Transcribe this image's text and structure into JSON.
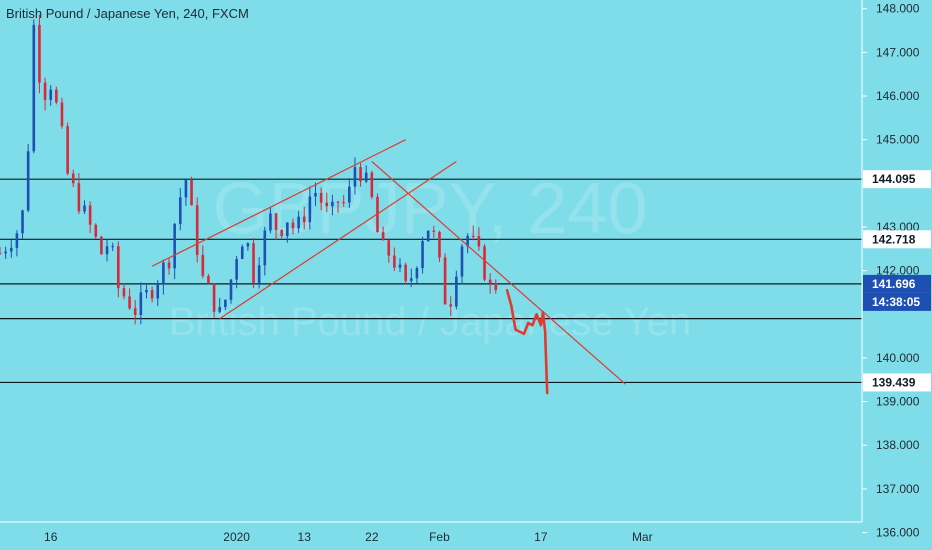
{
  "chart_data": {
    "type": "candlestick",
    "title": "British Pound / Japanese Yen, 240, FXCM",
    "watermark": {
      "symbol": "GBPJPY, 240",
      "description": "British Pound / Japanese Yen"
    },
    "colors": {
      "background": "#7fdde9",
      "up": "#1e50b4",
      "down": "#d9283a",
      "drawing": "#e03a2e",
      "level_line": "#0d1b22",
      "current_price_bg": "#1e50b4"
    },
    "y_axis": {
      "range": [
        135.6,
        148.2
      ],
      "ticks": [
        "148.000",
        "147.000",
        "146.000",
        "145.000",
        "143.000",
        "142.000",
        "140.000",
        "139.000",
        "138.000",
        "137.000",
        "136.000"
      ]
    },
    "x_axis": {
      "range": [
        "2020-01-13",
        "2020-03-04"
      ],
      "ticks": [
        {
          "date": "2020-01-16",
          "label": "16"
        },
        {
          "date": "2020-01-27",
          "label": "2020"
        },
        {
          "date": "2020-01-31",
          "label": "13"
        },
        {
          "date": "2020-02-04",
          "label": "22"
        },
        {
          "date": "2020-02-08",
          "label": "Feb"
        },
        {
          "date": "2020-02-14",
          "label": "17"
        },
        {
          "date": "2020-02-20",
          "label": "Mar"
        }
      ]
    },
    "price_path": [
      [
        "2020-01-13",
        142.4
      ],
      [
        "2020-01-14",
        142.9
      ],
      [
        "2020-01-14T12:00",
        143.5
      ],
      [
        "2020-01-15",
        147.6
      ],
      [
        "2020-01-15T12:00",
        146.0
      ],
      [
        "2020-01-16",
        146.3
      ],
      [
        "2020-01-16T12:00",
        145.5
      ],
      [
        "2020-01-17",
        144.2
      ],
      [
        "2020-01-17T12:00",
        143.7
      ],
      [
        "2020-01-18",
        143.3
      ],
      [
        "2020-01-19",
        142.4
      ],
      [
        "2020-01-19T12:00",
        142.7
      ],
      [
        "2020-01-20",
        141.6
      ],
      [
        "2020-01-21",
        141.1
      ],
      [
        "2020-01-22",
        141.6
      ],
      [
        "2020-01-23",
        142.3
      ],
      [
        "2020-01-23T12:00",
        143.5
      ],
      [
        "2020-01-24",
        144.1
      ],
      [
        "2020-01-24T12:00",
        142.9
      ],
      [
        "2020-01-25",
        141.8
      ],
      [
        "2020-01-26",
        141.0
      ],
      [
        "2020-01-26T12:00",
        141.5
      ],
      [
        "2020-01-27",
        142.4
      ],
      [
        "2020-01-27T12:00",
        142.9
      ],
      [
        "2020-01-28",
        141.9
      ],
      [
        "2020-01-28T12:00",
        142.6
      ],
      [
        "2020-01-29",
        143.2
      ],
      [
        "2020-01-29T12:00",
        142.9
      ],
      [
        "2020-01-30",
        143.2
      ],
      [
        "2020-01-30T12:00",
        142.9
      ],
      [
        "2020-01-31",
        143.3
      ],
      [
        "2020-01-31T12:00",
        143.9
      ],
      [
        "2020-02-01",
        143.6
      ],
      [
        "2020-02-01T12:00",
        143.2
      ],
      [
        "2020-02-02",
        143.6
      ],
      [
        "2020-02-02T12:00",
        143.5
      ],
      [
        "2020-02-03",
        144.4
      ],
      [
        "2020-02-03T12:00",
        144.2
      ],
      [
        "2020-02-04",
        143.6
      ],
      [
        "2020-02-04T12:00",
        142.5
      ],
      [
        "2020-02-05",
        142.4
      ],
      [
        "2020-02-05T12:00",
        142.1
      ],
      [
        "2020-02-06",
        141.6
      ],
      [
        "2020-02-06T12:00",
        142.0
      ],
      [
        "2020-02-07",
        142.8
      ],
      [
        "2020-02-07T12:00",
        143.1
      ],
      [
        "2020-02-08",
        142.1
      ],
      [
        "2020-02-08T12:00",
        141.0
      ],
      [
        "2020-02-09",
        142.1
      ],
      [
        "2020-02-09T12:00",
        142.9
      ],
      [
        "2020-02-10",
        142.6
      ],
      [
        "2020-02-10T12:00",
        142.2
      ],
      [
        "2020-02-11",
        141.6
      ],
      [
        "2020-02-11T12:00",
        141.7
      ]
    ],
    "horizontal_levels": [
      144.095,
      142.718,
      141.696,
      140.9,
      139.439
    ],
    "labels": {
      "level_high": "144.095",
      "level_mid": "142.718",
      "current_price": "141.696",
      "countdown": "14:38:05",
      "level_low": "139.439"
    },
    "trendlines": [
      {
        "from": [
          "2020-01-22",
          142.1
        ],
        "to": [
          "2020-02-06",
          145.0
        ]
      },
      {
        "from": [
          "2020-01-26",
          140.9
        ],
        "to": [
          "2020-02-09",
          144.5
        ]
      },
      {
        "from": [
          "2020-02-04",
          144.5
        ],
        "to": [
          "2020-02-19",
          139.4
        ]
      }
    ],
    "freehand_projection": [
      [
        "2020-02-12",
        141.55
      ],
      [
        "2020-02-12T06:00",
        141.2
      ],
      [
        "2020-02-12T12:00",
        140.65
      ],
      [
        "2020-02-13",
        140.55
      ],
      [
        "2020-02-13T06:00",
        140.8
      ],
      [
        "2020-02-13T12:00",
        140.75
      ],
      [
        "2020-02-13T18:00",
        141.0
      ],
      [
        "2020-02-14",
        140.75
      ],
      [
        "2020-02-14T03:00",
        141.05
      ],
      [
        "2020-02-14T06:00",
        140.6
      ],
      [
        "2020-02-14T09:00",
        139.2
      ]
    ]
  }
}
